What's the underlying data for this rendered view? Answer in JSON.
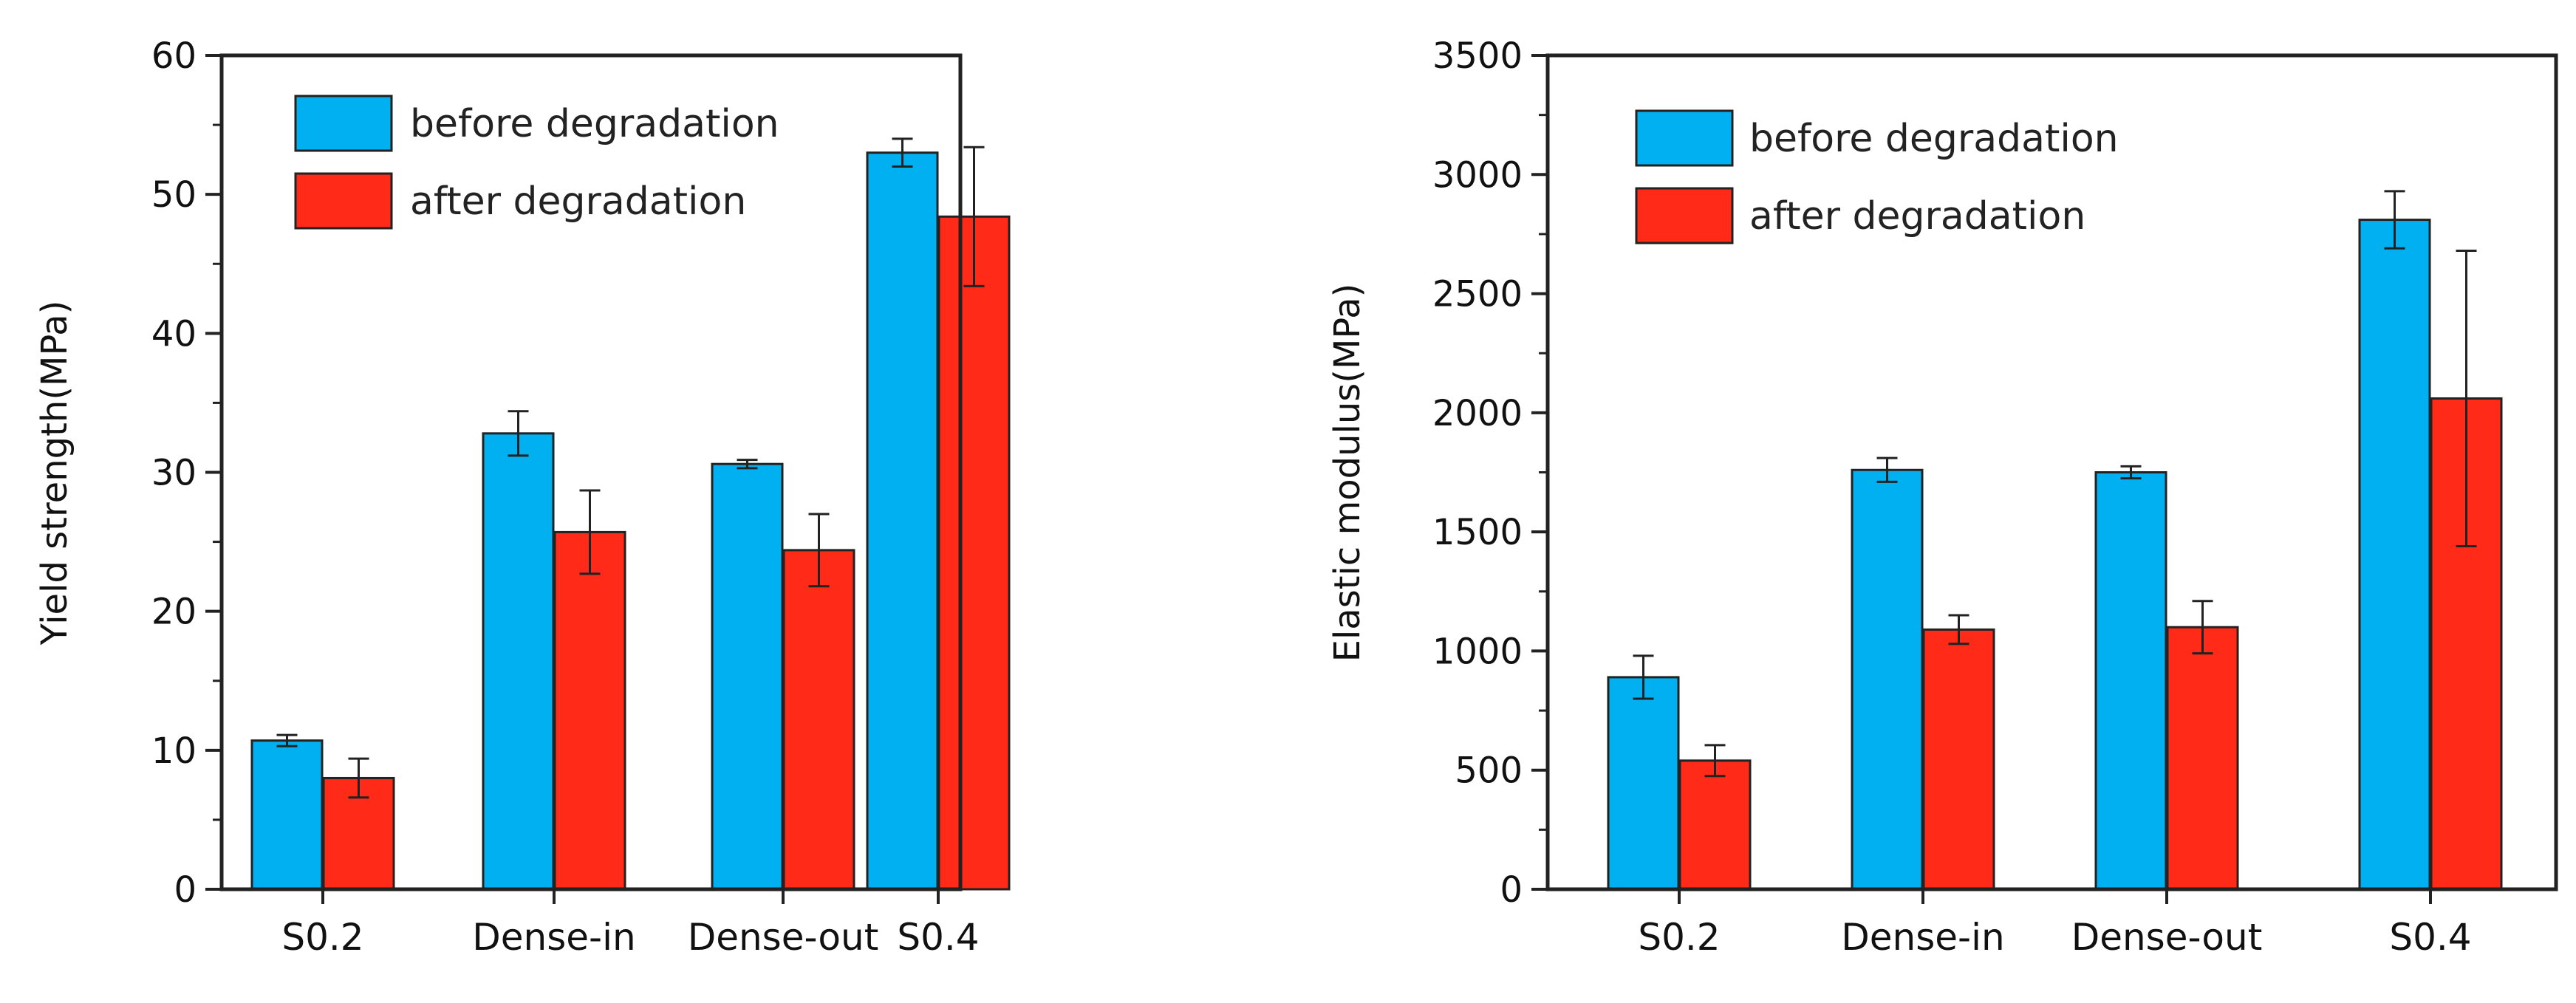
{
  "chart_data": [
    {
      "type": "bar",
      "title": "",
      "xlabel": "",
      "ylabel": "Yield strength(MPa)",
      "ylim": [
        0,
        60
      ],
      "yticks": [
        "0",
        "10",
        "20",
        "30",
        "40",
        "50",
        "60"
      ],
      "categories": [
        "S0.2",
        "Dense-in",
        "Dense-out",
        "S0.4"
      ],
      "legend": "top-left",
      "series": [
        {
          "name": "before degradation",
          "color": "#00b0f0",
          "values": [
            10.7,
            32.8,
            30.6,
            53.0
          ],
          "errors": [
            0.4,
            1.6,
            0.3,
            1.0
          ]
        },
        {
          "name": "after degradation",
          "color": "#ff2a17",
          "values": [
            8.0,
            25.7,
            24.4,
            48.4
          ],
          "errors": [
            1.4,
            3.0,
            2.6,
            5.0
          ]
        }
      ]
    },
    {
      "type": "bar",
      "title": "",
      "xlabel": "",
      "ylabel": "Elastic modulus(MPa)",
      "ylim": [
        0,
        3500
      ],
      "yticks": [
        "0",
        "500",
        "1000",
        "1500",
        "2000",
        "2500",
        "3000",
        "3500"
      ],
      "categories": [
        "S0.2",
        "Dense-in",
        "Dense-out",
        "S0.4"
      ],
      "legend": "top-left",
      "series": [
        {
          "name": "before degradation",
          "color": "#00b0f0",
          "values": [
            890,
            1760,
            1750,
            2810
          ],
          "errors": [
            90,
            50,
            25,
            120
          ]
        },
        {
          "name": "after degradation",
          "color": "#ff2a17",
          "values": [
            540,
            1090,
            1100,
            2060
          ],
          "errors": [
            65,
            60,
            110,
            620
          ]
        }
      ]
    }
  ]
}
